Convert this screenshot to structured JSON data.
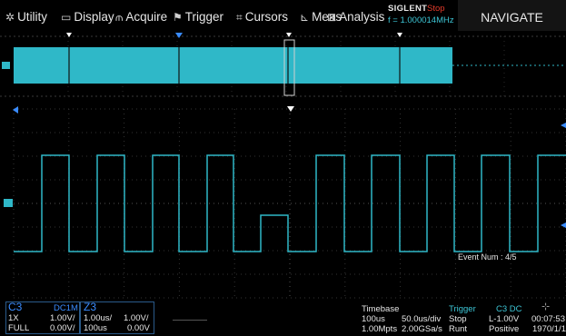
{
  "menu": {
    "utility": {
      "label": "Utility",
      "icon": "gear-icon",
      "glyph": "✲"
    },
    "display": {
      "label": "Display",
      "icon": "monitor-icon",
      "glyph": "⌂"
    },
    "acquire": {
      "label": "Acquire",
      "icon": "acquire-icon",
      "glyph": "ᵐ"
    },
    "trigger": {
      "label": "Trigger",
      "icon": "flag-icon",
      "glyph": "⚑"
    },
    "cursors": {
      "label": "Cursors",
      "icon": "cursor-grid-icon",
      "glyph": "⌗"
    },
    "meas": {
      "label": "Meas",
      "icon": "measure-icon",
      "glyph": "⊾"
    },
    "analysis": {
      "label": "Analysis",
      "icon": "analysis-icon",
      "glyph": "⊠"
    }
  },
  "header": {
    "brand": "SIGLENT",
    "run_state": "Stop",
    "frequency": "f = 1.000014MHz",
    "navigate": "NAVIGATE"
  },
  "waveform": {
    "event_num": "Event Num : 4/5",
    "trace_color": "#2fb8c8",
    "grid_color": "#3a3a3a",
    "marker_color": "#3a8cff"
  },
  "channel": {
    "name": "C3",
    "coupling": "DC1M",
    "probe": "1X",
    "scale": "1.00V/",
    "bandwidth": "FULL",
    "offset": "0.00V/"
  },
  "zoom": {
    "name": "Z3",
    "timebase": "1.00us/",
    "delay": "100us",
    "scale": "1.00V/",
    "offset": "0.00V"
  },
  "timebase": {
    "title": "Timebase",
    "delay": "100us",
    "scale": "50.0us/div",
    "memory": "1.00Mpts",
    "sample_rate": "2.00GSa/s"
  },
  "trigger": {
    "title": "Trigger",
    "channel": "C3 DC",
    "state": "Stop",
    "level": "L-1.00V",
    "type": "Runt",
    "polarity": "Positive"
  },
  "clock": {
    "time": "00:07:53",
    "date": "1970/1/1"
  }
}
